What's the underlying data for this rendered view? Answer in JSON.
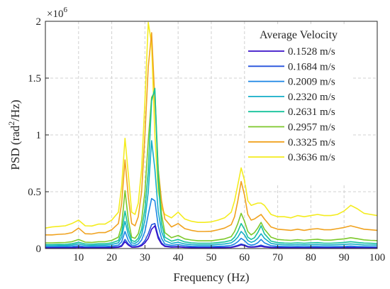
{
  "chart_data": {
    "type": "line",
    "xlabel": "Frequency (Hz)",
    "ylabel_main": "PSD (rad",
    "ylabel_sup": "2",
    "ylabel_tail": "/Hz)",
    "y_multiplier_base": "×10",
    "y_multiplier_exp": "6",
    "xlim": [
      0,
      100
    ],
    "ylim": [
      0,
      2000000
    ],
    "x_ticks": [
      10,
      20,
      30,
      40,
      50,
      60,
      70,
      80,
      90,
      100
    ],
    "x_tick_labels": [
      "10",
      "20",
      "30",
      "40",
      "50",
      "60",
      "70",
      "80",
      "90",
      "100"
    ],
    "y_ticks": [
      0,
      500000,
      1000000,
      1500000,
      2000000
    ],
    "y_tick_labels": [
      "0",
      "0.5",
      "1",
      "1.5",
      "2"
    ],
    "grid": true,
    "legend": {
      "title": "Average Velocity",
      "placement": "top-right"
    },
    "x": [
      0,
      2,
      4,
      6,
      8,
      10,
      12,
      14,
      16,
      18,
      20,
      22,
      23,
      24,
      25,
      26,
      27,
      28,
      29,
      30,
      31,
      32,
      33,
      34,
      35,
      36,
      38,
      40,
      42,
      44,
      46,
      48,
      50,
      52,
      54,
      56,
      57,
      58,
      59,
      60,
      61,
      62,
      63,
      64,
      65,
      66,
      68,
      70,
      72,
      74,
      76,
      78,
      80,
      82,
      84,
      86,
      88,
      90,
      92,
      94,
      96,
      98,
      100
    ],
    "series": [
      {
        "name": "0.1528 m/s",
        "color": "#3a10c8",
        "values": [
          5000,
          5000,
          6000,
          6000,
          7000,
          10000,
          6000,
          6000,
          7000,
          7000,
          8000,
          11000,
          20000,
          60000,
          30000,
          12000,
          12000,
          15000,
          25000,
          50000,
          90000,
          170000,
          200000,
          90000,
          40000,
          18000,
          12000,
          14000,
          10000,
          8000,
          7000,
          7000,
          7000,
          8000,
          8000,
          10000,
          15000,
          22000,
          32000,
          25000,
          14000,
          12000,
          13000,
          16000,
          20000,
          14000,
          9000,
          8000,
          7000,
          7000,
          7000,
          6000,
          7000,
          7000,
          6000,
          6000,
          6000,
          7000,
          8000,
          7000,
          6000,
          6000,
          5000
        ]
      },
      {
        "name": "0.1684 m/s",
        "color": "#2552dc",
        "values": [
          8000,
          8000,
          9000,
          9000,
          10000,
          14000,
          9000,
          9000,
          10000,
          10000,
          12000,
          16000,
          28000,
          80000,
          40000,
          16000,
          16000,
          20000,
          35000,
          70000,
          130000,
          210000,
          220000,
          110000,
          50000,
          24000,
          16000,
          18000,
          13000,
          11000,
          10000,
          10000,
          10000,
          11000,
          11000,
          13000,
          20000,
          28000,
          40000,
          32000,
          18000,
          15000,
          17000,
          22000,
          30000,
          20000,
          12000,
          11000,
          10000,
          10000,
          10000,
          9000,
          10000,
          10000,
          9000,
          9000,
          9000,
          10000,
          11000,
          10000,
          9000,
          9000,
          8000
        ]
      },
      {
        "name": "0.2009 m/s",
        "color": "#1b86e4",
        "values": [
          15000,
          15000,
          16000,
          16000,
          18000,
          25000,
          16000,
          16000,
          18000,
          18000,
          22000,
          30000,
          60000,
          150000,
          70000,
          30000,
          28000,
          40000,
          75000,
          150000,
          300000,
          440000,
          420000,
          200000,
          90000,
          40000,
          28000,
          35000,
          25000,
          20000,
          18000,
          18000,
          18000,
          20000,
          22000,
          28000,
          40000,
          60000,
          90000,
          70000,
          40000,
          30000,
          35000,
          50000,
          80000,
          50000,
          25000,
          20000,
          18000,
          17000,
          18000,
          17000,
          18000,
          18000,
          17000,
          17000,
          18000,
          19000,
          22000,
          19000,
          17000,
          16000,
          15000
        ]
      },
      {
        "name": "0.2320 m/s",
        "color": "#14aec8",
        "values": [
          25000,
          25000,
          26000,
          26000,
          30000,
          40000,
          28000,
          27000,
          30000,
          30000,
          36000,
          50000,
          100000,
          240000,
          120000,
          50000,
          45000,
          65000,
          120000,
          250000,
          500000,
          950000,
          700000,
          330000,
          150000,
          70000,
          45000,
          55000,
          40000,
          35000,
          32000,
          32000,
          32000,
          36000,
          40000,
          50000,
          70000,
          100000,
          150000,
          120000,
          70000,
          55000,
          65000,
          90000,
          130000,
          90000,
          45000,
          36000,
          33000,
          32000,
          34000,
          32000,
          34000,
          35000,
          32000,
          32000,
          34000,
          36000,
          40000,
          36000,
          32000,
          31000,
          30000
        ]
      },
      {
        "name": "0.2631 m/s",
        "color": "#16c29c",
        "values": [
          35000,
          35000,
          36000,
          37000,
          42000,
          55000,
          40000,
          38000,
          42000,
          42000,
          50000,
          70000,
          140000,
          330000,
          170000,
          70000,
          62000,
          90000,
          170000,
          350000,
          680000,
          1300000,
          1410000,
          600000,
          220000,
          100000,
          65000,
          80000,
          58000,
          50000,
          46000,
          46000,
          46000,
          52000,
          58000,
          72000,
          100000,
          150000,
          220000,
          170000,
          100000,
          80000,
          95000,
          140000,
          200000,
          130000,
          65000,
          52000,
          48000,
          46000,
          50000,
          46000,
          50000,
          52000,
          47000,
          47000,
          50000,
          54000,
          60000,
          54000,
          48000,
          46000,
          44000
        ]
      },
      {
        "name": "0.2957 m/s",
        "color": "#7cc82a",
        "values": [
          50000,
          50000,
          52000,
          53000,
          60000,
          80000,
          56000,
          54000,
          60000,
          60000,
          72000,
          100000,
          200000,
          510000,
          250000,
          100000,
          90000,
          130000,
          250000,
          500000,
          950000,
          1330000,
          1380000,
          700000,
          300000,
          140000,
          95000,
          115000,
          85000,
          75000,
          68000,
          68000,
          68000,
          76000,
          85000,
          105000,
          150000,
          220000,
          310000,
          240000,
          150000,
          120000,
          140000,
          180000,
          230000,
          170000,
          100000,
          80000,
          75000,
          72000,
          78000,
          72000,
          78000,
          82000,
          74000,
          74000,
          80000,
          85000,
          95000,
          86000,
          76000,
          72000,
          70000
        ]
      },
      {
        "name": "0.3325 m/s",
        "color": "#f0a21e",
        "values": [
          120000,
          120000,
          125000,
          128000,
          140000,
          180000,
          130000,
          128000,
          140000,
          140000,
          165000,
          220000,
          400000,
          780000,
          450000,
          220000,
          200000,
          280000,
          500000,
          1000000,
          1600000,
          1900000,
          1300000,
          700000,
          420000,
          260000,
          190000,
          220000,
          175000,
          160000,
          150000,
          150000,
          152000,
          165000,
          180000,
          210000,
          280000,
          420000,
          590000,
          470000,
          300000,
          250000,
          260000,
          280000,
          300000,
          260000,
          190000,
          170000,
          165000,
          160000,
          170000,
          160000,
          170000,
          175000,
          165000,
          165000,
          175000,
          185000,
          200000,
          185000,
          170000,
          165000,
          160000
        ]
      },
      {
        "name": "0.3636 m/s",
        "color": "#f4ec1e",
        "values": [
          180000,
          190000,
          195000,
          200000,
          220000,
          250000,
          200000,
          198000,
          215000,
          215000,
          250000,
          320000,
          550000,
          970000,
          650000,
          320000,
          300000,
          400000,
          700000,
          1300000,
          1990000,
          1800000,
          1000000,
          500000,
          360000,
          300000,
          270000,
          320000,
          260000,
          240000,
          230000,
          230000,
          235000,
          250000,
          270000,
          320000,
          420000,
          560000,
          710000,
          600000,
          420000,
          380000,
          390000,
          400000,
          400000,
          380000,
          300000,
          280000,
          280000,
          270000,
          290000,
          280000,
          290000,
          300000,
          290000,
          290000,
          300000,
          330000,
          380000,
          350000,
          310000,
          300000,
          290000
        ]
      }
    ]
  }
}
